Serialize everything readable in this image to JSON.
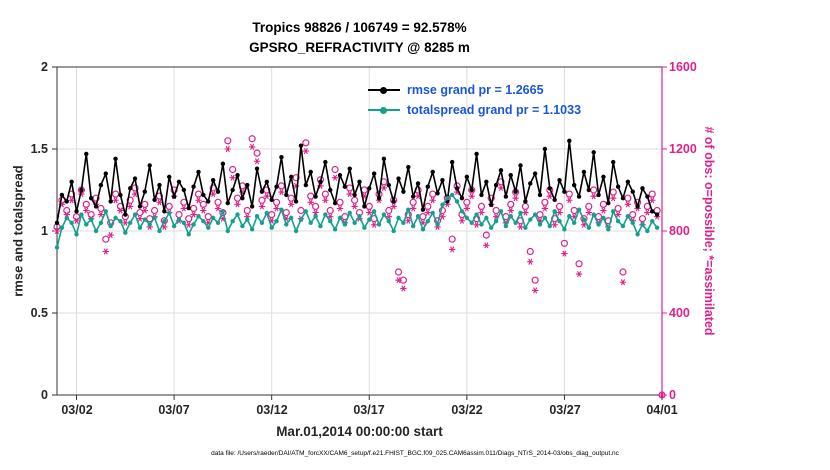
{
  "header": {
    "title_line1": "Tropics 98826 / 106749 = 92.578%",
    "title_line2": "GPSRO_REFRACTIVITY @ 8285 m"
  },
  "legend": {
    "text_color": "#1a56db",
    "entries": [
      {
        "label": "rmse grand pr = 1.2665"
      },
      {
        "label": "totalspread grand pr = 1.1033"
      }
    ]
  },
  "caption": "data file: /Users/raeder/DAI/ATM_forcXX/CAM6_setup/f.e21.FHIST_BGC.f09_025.CAM6assim.011/Diags_NTrS_2014-03/obs_diag_output.nc",
  "chart_data": {
    "type": "line",
    "title": "Tropics 98826 / 106749 = 92.578%",
    "subtitle": "GPSRO_REFRACTIVITY @ 8285 m",
    "xlabel": "Mar.01,2014 00:00:00 start",
    "ylabel_left": "rmse and totalspread",
    "ylabel_right": "# of obs: o=possible; *=assimilated",
    "grid": "on",
    "legend_position": "upper-right-inside",
    "x_domain": [
      0,
      124
    ],
    "x_ticks": [
      {
        "pos": 4,
        "label": "03/02"
      },
      {
        "pos": 24,
        "label": "03/07"
      },
      {
        "pos": 44,
        "label": "03/12"
      },
      {
        "pos": 64,
        "label": "03/17"
      },
      {
        "pos": 84,
        "label": "03/22"
      },
      {
        "pos": 104,
        "label": "03/27"
      },
      {
        "pos": 124,
        "label": "04/01"
      }
    ],
    "y_left": {
      "range": [
        0,
        2
      ],
      "ticks": [
        0,
        0.5,
        1,
        1.5,
        2
      ]
    },
    "y_right": {
      "range": [
        0,
        1600
      ],
      "ticks": [
        0,
        400,
        800,
        1200,
        1600
      ]
    },
    "style": {
      "grid_color": "#dedede",
      "frame_color": "#333333"
    },
    "series": [
      {
        "name": "rmse",
        "grand_pr": 1.2665,
        "color": "#000000",
        "values": [
          1.05,
          1.22,
          1.18,
          1.3,
          1.12,
          1.25,
          1.47,
          1.2,
          1.15,
          1.28,
          1.35,
          1.18,
          1.44,
          1.22,
          1.1,
          1.26,
          1.32,
          1.15,
          1.24,
          1.4,
          1.19,
          1.28,
          1.12,
          1.33,
          1.21,
          1.3,
          1.25,
          1.14,
          1.27,
          1.36,
          1.22,
          1.18,
          1.31,
          1.24,
          1.41,
          1.17,
          1.25,
          1.34,
          1.2,
          1.28,
          1.15,
          1.38,
          1.24,
          1.3,
          1.19,
          1.27,
          1.45,
          1.22,
          1.33,
          1.18,
          1.52,
          1.28,
          1.36,
          1.21,
          1.3,
          1.42,
          1.25,
          1.17,
          1.34,
          1.27,
          1.38,
          1.22,
          1.3,
          1.15,
          1.26,
          1.35,
          1.2,
          1.44,
          1.28,
          1.18,
          1.32,
          1.24,
          1.39,
          1.21,
          1.29,
          1.13,
          1.27,
          1.36,
          1.23,
          1.31,
          1.18,
          1.42,
          1.26,
          1.2,
          1.33,
          1.25,
          1.47,
          1.22,
          1.3,
          1.16,
          1.28,
          1.37,
          1.21,
          1.34,
          1.24,
          1.4,
          1.18,
          1.29,
          1.35,
          1.22,
          1.5,
          1.26,
          1.19,
          1.31,
          1.24,
          1.55,
          1.28,
          1.21,
          1.36,
          1.25,
          1.48,
          1.22,
          1.33,
          1.17,
          1.42,
          1.27,
          1.2,
          1.3,
          1.24,
          1.15,
          1.26,
          1.21,
          1.12,
          1.1
        ]
      },
      {
        "name": "totalspread",
        "grand_pr": 1.1033,
        "color": "#12a08f",
        "values": [
          0.9,
          1.02,
          1.08,
          1.05,
          0.98,
          1.1,
          1.04,
          1.07,
          1.0,
          1.05,
          1.12,
          1.03,
          1.08,
          1.06,
          0.99,
          1.05,
          1.1,
          1.02,
          1.07,
          1.04,
          1.08,
          1.0,
          1.06,
          1.11,
          1.03,
          1.07,
          1.05,
          0.98,
          1.04,
          1.09,
          1.06,
          1.02,
          1.08,
          1.05,
          1.12,
          1.0,
          1.06,
          1.1,
          1.03,
          1.07,
          1.01,
          1.09,
          1.05,
          1.11,
          1.02,
          1.06,
          1.13,
          1.04,
          1.08,
          1.0,
          1.07,
          1.12,
          1.05,
          1.09,
          1.03,
          1.1,
          1.06,
          1.01,
          1.08,
          1.04,
          1.11,
          1.05,
          1.09,
          1.02,
          1.07,
          1.12,
          1.04,
          1.1,
          1.06,
          1.0,
          1.08,
          1.05,
          1.13,
          1.03,
          1.09,
          1.01,
          1.06,
          1.11,
          1.04,
          1.16,
          1.2,
          1.22,
          1.18,
          1.12,
          1.08,
          1.05,
          1.1,
          1.04,
          1.08,
          1.02,
          1.06,
          1.12,
          1.03,
          1.09,
          1.05,
          1.11,
          1.02,
          1.07,
          1.1,
          1.04,
          1.08,
          1.03,
          1.12,
          1.06,
          1.01,
          1.09,
          1.05,
          1.13,
          1.07,
          1.02,
          1.1,
          1.04,
          1.08,
          1.01,
          1.12,
          1.06,
          1.03,
          1.09,
          1.05,
          0.98,
          1.04,
          1.0,
          1.06,
          1.02
        ]
      }
    ],
    "obs": {
      "color": "#e0218a",
      "possible_marker": "o",
      "assimilated_marker": "*",
      "possible": [
        820,
        950,
        900,
        980,
        870,
        1000,
        930,
        880,
        960,
        910,
        760,
        840,
        980,
        920,
        870,
        950,
        1010,
        890,
        930,
        860,
        900,
        970,
        850,
        920,
        1000,
        880,
        940,
        860,
        910,
        980,
        930,
        870,
        1010,
        940,
        890,
        1240,
        1100,
        960,
        1020,
        900,
        1250,
        1180,
        950,
        1000,
        880,
        940,
        1020,
        890,
        960,
        1060,
        900,
        1230,
        970,
        920,
        1050,
        980,
        900,
        1100,
        940,
        870,
        1010,
        950,
        890,
        1000,
        920,
        860,
        980,
        1040,
        900,
        950,
        600,
        560,
        880,
        940,
        1000,
        870,
        920,
        980,
        850,
        900,
        960,
        760,
        1020,
        880,
        940,
        1000,
        860,
        920,
        780,
        960,
        900,
        1040,
        870,
        930,
        990,
        850,
        920,
        700,
        560,
        880,
        940,
        1000,
        860,
        920,
        740,
        980,
        900,
        640,
        860,
        920,
        1000,
        870,
        930,
        850,
        990,
        910,
        600,
        960,
        880,
        940,
        860,
        920,
        980,
        900,
        0
      ],
      "assimilated": [
        800,
        930,
        880,
        950,
        850,
        980,
        900,
        860,
        930,
        880,
        700,
        780,
        950,
        900,
        840,
        920,
        980,
        860,
        900,
        820,
        870,
        940,
        820,
        890,
        970,
        850,
        910,
        830,
        880,
        950,
        900,
        840,
        980,
        910,
        860,
        1200,
        1060,
        930,
        990,
        870,
        1210,
        1140,
        920,
        970,
        850,
        910,
        990,
        860,
        930,
        1020,
        860,
        1190,
        940,
        890,
        1020,
        950,
        870,
        1060,
        910,
        840,
        980,
        920,
        860,
        970,
        890,
        830,
        950,
        1010,
        870,
        920,
        560,
        520,
        850,
        910,
        970,
        840,
        890,
        950,
        820,
        870,
        930,
        710,
        990,
        850,
        910,
        970,
        830,
        890,
        730,
        930,
        870,
        1010,
        840,
        900,
        960,
        820,
        890,
        650,
        510,
        850,
        910,
        970,
        830,
        890,
        690,
        950,
        870,
        590,
        830,
        890,
        970,
        840,
        900,
        820,
        960,
        880,
        550,
        930,
        850,
        910,
        830,
        890,
        950,
        870,
        0
      ]
    }
  }
}
